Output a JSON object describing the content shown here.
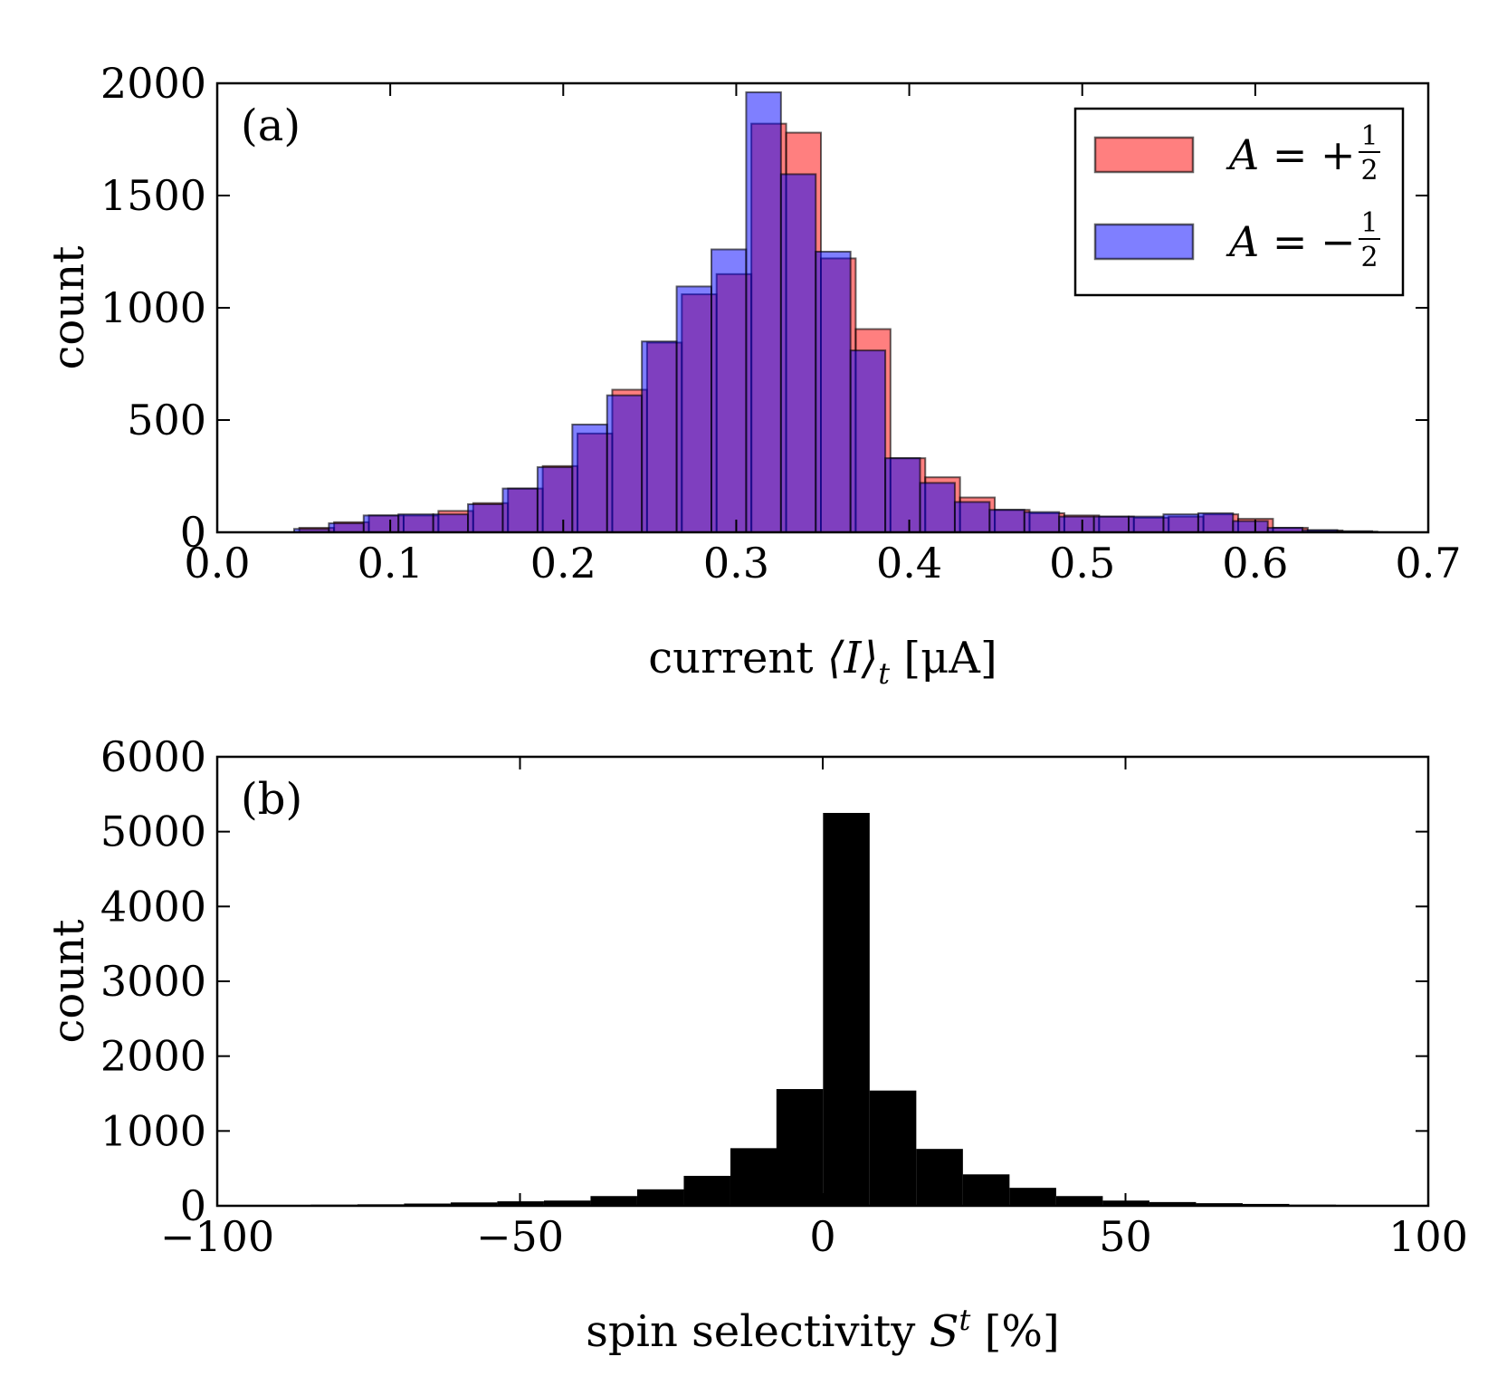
{
  "chart_data": [
    {
      "type": "bar",
      "panel": "(a)",
      "xlabel": "current ⟨I⟩t [μA]",
      "xlabel_parts": {
        "prefix": "current ",
        "symbol": "⟨I⟩",
        "sub": "t",
        "unit": " [μA]"
      },
      "ylabel": "count",
      "xlim": [
        0.0,
        0.7
      ],
      "ylim": [
        0,
        2000
      ],
      "xticks": [
        "0.0",
        "0.1",
        "0.2",
        "0.3",
        "0.4",
        "0.5",
        "0.6",
        "0.7"
      ],
      "yticks": [
        "0",
        "500",
        "1000",
        "1500",
        "2000"
      ],
      "legend_position": "top-right",
      "series": [
        {
          "name": "A = +1/2",
          "legend_text": "A = +",
          "frac_num": "1",
          "frac_den": "2",
          "color": "#ff0000",
          "alpha": 0.5,
          "bin_width": 0.0201,
          "x": [
            0.0575,
            0.0776,
            0.0977,
            0.1178,
            0.1379,
            0.158,
            0.1781,
            0.1982,
            0.2183,
            0.2384,
            0.2585,
            0.2786,
            0.2987,
            0.3188,
            0.3389,
            0.359,
            0.3791,
            0.3992,
            0.4193,
            0.4394,
            0.4595,
            0.4796,
            0.4997,
            0.5198,
            0.5399,
            0.56,
            0.5801,
            0.6002,
            0.6203,
            0.6404,
            0.6605
          ],
          "values": [
            20,
            45,
            75,
            75,
            95,
            130,
            195,
            295,
            440,
            635,
            845,
            1060,
            1150,
            1820,
            1780,
            1220,
            905,
            330,
            245,
            155,
            100,
            85,
            75,
            70,
            65,
            70,
            80,
            60,
            20,
            8,
            3
          ]
        },
        {
          "name": "A = -1/2",
          "legend_text": "A = −",
          "frac_num": "1",
          "frac_den": "2",
          "color": "#0000ff",
          "alpha": 0.5,
          "bin_width": 0.0201,
          "x": [
            0.0545,
            0.0746,
            0.0947,
            0.1148,
            0.1349,
            0.155,
            0.1751,
            0.1952,
            0.2153,
            0.2354,
            0.2555,
            0.2756,
            0.2957,
            0.3158,
            0.3359,
            0.356,
            0.3761,
            0.3962,
            0.4163,
            0.4364,
            0.4565,
            0.4766,
            0.4967,
            0.5168,
            0.5369,
            0.557,
            0.5771,
            0.5972,
            0.6173,
            0.6374,
            0.6575
          ],
          "values": [
            15,
            40,
            75,
            80,
            80,
            125,
            195,
            290,
            480,
            610,
            850,
            1095,
            1260,
            1960,
            1595,
            1250,
            810,
            330,
            220,
            135,
            100,
            90,
            70,
            70,
            70,
            80,
            85,
            50,
            20,
            10,
            5
          ]
        }
      ]
    },
    {
      "type": "bar",
      "panel": "(b)",
      "xlabel": "spin selectivity St [%]",
      "xlabel_parts": {
        "prefix": "spin selectivity ",
        "symbol": "S",
        "sup": "t",
        "unit": " [%]"
      },
      "ylabel": "count",
      "xlim": [
        -100,
        100
      ],
      "ylim": [
        0,
        6000
      ],
      "xticks": [
        "−100",
        "−50",
        "0",
        "50",
        "100"
      ],
      "yticks": [
        "0",
        "1000",
        "2000",
        "3000",
        "4000",
        "5000",
        "6000"
      ],
      "series": [
        {
          "name": "spin selectivity",
          "color": "#000000",
          "bin_width": 7.7,
          "x": [
            -96.1,
            -88.4,
            -80.7,
            -73.0,
            -65.3,
            -57.6,
            -49.9,
            -42.2,
            -34.5,
            -26.8,
            -19.1,
            -11.4,
            -3.8,
            3.9,
            11.6,
            19.3,
            27.0,
            34.7,
            42.4,
            50.1,
            57.8,
            65.5,
            73.2,
            80.9,
            88.6,
            96.3
          ],
          "values": [
            5,
            10,
            15,
            20,
            30,
            45,
            60,
            70,
            130,
            220,
            400,
            770,
            1560,
            5250,
            1540,
            760,
            420,
            240,
            130,
            70,
            50,
            35,
            25,
            15,
            10,
            5
          ]
        }
      ]
    }
  ]
}
